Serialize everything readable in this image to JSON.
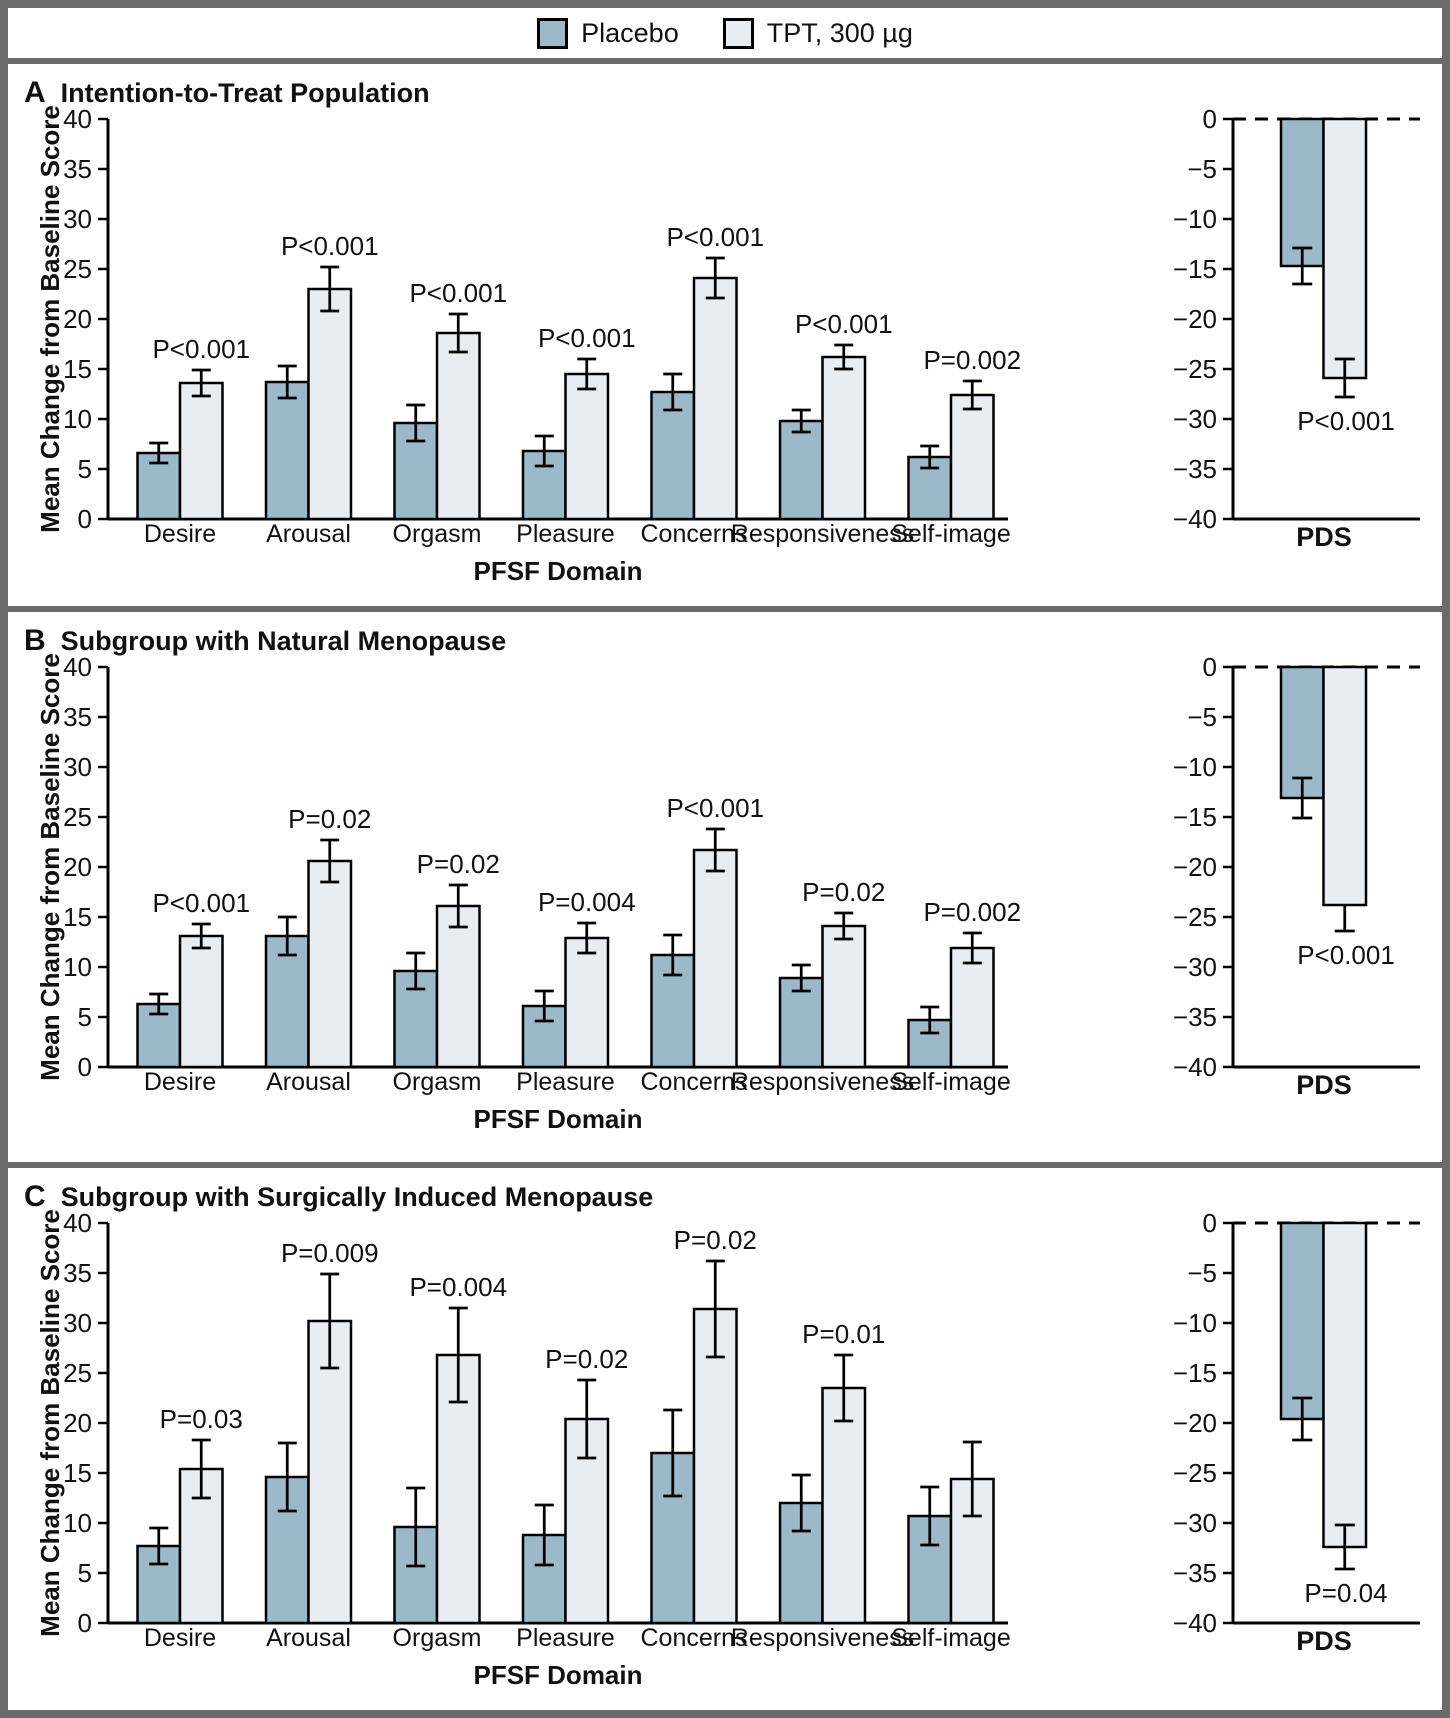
{
  "legend": {
    "items": [
      {
        "label": "Placebo",
        "color": "#9cb9ca"
      },
      {
        "label": "TPT, 300 µg",
        "color": "#e8edf4"
      }
    ]
  },
  "styles": {
    "frame_color": "#6b6b6b",
    "bar_stroke": "#000000",
    "placebo_fill": "#9cb9ca",
    "tpt_fill": "#e8edf4"
  },
  "chart_data": [
    {
      "type": "bar",
      "panel": "A",
      "title": "Intention-to-Treat Population",
      "ylabel": "Mean Change from Baseline Score",
      "xlabel": "PFSF Domain",
      "ylim": [
        0,
        40
      ],
      "ytick_step": 5,
      "grid": false,
      "legend_position": "top",
      "categories": [
        "Desire",
        "Arousal",
        "Orgasm",
        "Pleasure",
        "Concerns",
        "Responsiveness",
        "Self-image"
      ],
      "series": [
        {
          "name": "Placebo",
          "values": [
            6.6,
            13.7,
            9.6,
            6.8,
            12.7,
            9.8,
            6.2
          ],
          "errors": [
            1.0,
            1.6,
            1.8,
            1.5,
            1.8,
            1.1,
            1.1
          ]
        },
        {
          "name": "TPT, 300 µg",
          "values": [
            13.6,
            23.0,
            18.6,
            14.5,
            24.1,
            16.2,
            12.4
          ],
          "errors": [
            1.3,
            2.2,
            1.9,
            1.5,
            2.0,
            1.2,
            1.4
          ]
        }
      ],
      "p_values": [
        "P<0.001",
        "P<0.001",
        "P<0.001",
        "P<0.001",
        "P<0.001",
        "P<0.001",
        "P=0.002"
      ],
      "pds": {
        "label": "PDS",
        "ylim": [
          -40,
          0
        ],
        "ytick_step": 5,
        "series": [
          {
            "name": "Placebo",
            "value": -14.7,
            "error": 1.8,
            "error_style": "full"
          },
          {
            "name": "TPT, 300 µg",
            "value": -25.9,
            "error": 1.9,
            "error_style": "full"
          }
        ],
        "p_value": "P<0.001"
      }
    },
    {
      "type": "bar",
      "panel": "B",
      "title": "Subgroup with Natural Menopause",
      "ylabel": "Mean Change from Baseline Score",
      "xlabel": "PFSF Domain",
      "ylim": [
        0,
        40
      ],
      "ytick_step": 5,
      "grid": false,
      "categories": [
        "Desire",
        "Arousal",
        "Orgasm",
        "Pleasure",
        "Concerns",
        "Responsiveness",
        "Self-image"
      ],
      "series": [
        {
          "name": "Placebo",
          "values": [
            6.3,
            13.1,
            9.6,
            6.1,
            11.2,
            8.9,
            4.7
          ],
          "errors": [
            1.0,
            1.9,
            1.8,
            1.5,
            2.0,
            1.3,
            1.3
          ]
        },
        {
          "name": "TPT, 300 µg",
          "values": [
            13.1,
            20.6,
            16.1,
            12.9,
            21.7,
            14.1,
            11.9
          ],
          "errors": [
            1.2,
            2.1,
            2.1,
            1.5,
            2.1,
            1.3,
            1.5
          ]
        }
      ],
      "p_values": [
        "P<0.001",
        "P=0.02",
        "P=0.02",
        "P=0.004",
        "P<0.001",
        "P=0.02",
        "P=0.002"
      ],
      "pds": {
        "label": "PDS",
        "ylim": [
          -40,
          0
        ],
        "ytick_step": 5,
        "series": [
          {
            "name": "Placebo",
            "value": -13.1,
            "error": 2.0,
            "error_style": "full"
          },
          {
            "name": "TPT, 300 µg",
            "value": -23.8,
            "error": 2.6,
            "error_style": "below"
          }
        ],
        "p_value": "P<0.001"
      }
    },
    {
      "type": "bar",
      "panel": "C",
      "title": "Subgroup with Surgically Induced Menopause",
      "ylabel": "Mean Change from Baseline Score",
      "xlabel": "PFSF Domain",
      "ylim": [
        0,
        40
      ],
      "ytick_step": 5,
      "grid": false,
      "categories": [
        "Desire",
        "Arousal",
        "Orgasm",
        "Pleasure",
        "Concerns",
        "Responsiveness",
        "Self-image"
      ],
      "series": [
        {
          "name": "Placebo",
          "values": [
            7.7,
            14.6,
            9.6,
            8.8,
            17.0,
            12.0,
            10.7
          ],
          "errors": [
            1.8,
            3.4,
            3.9,
            3.0,
            4.3,
            2.8,
            2.9
          ]
        },
        {
          "name": "TPT, 300 µg",
          "values": [
            15.4,
            30.2,
            26.8,
            20.4,
            31.4,
            23.5,
            14.4
          ],
          "errors": [
            2.9,
            4.7,
            4.7,
            3.9,
            4.8,
            3.3,
            3.7
          ]
        }
      ],
      "p_values": [
        "P=0.03",
        "P=0.009",
        "P=0.004",
        "P=0.02",
        "P=0.02",
        "P=0.01",
        ""
      ],
      "pds": {
        "label": "PDS",
        "ylim": [
          -40,
          0
        ],
        "ytick_step": 5,
        "series": [
          {
            "name": "Placebo",
            "value": -19.6,
            "error": 2.1,
            "error_style": "full"
          },
          {
            "name": "TPT, 300 µg",
            "value": -32.4,
            "error": 2.2,
            "error_style": "full"
          }
        ],
        "p_value": "P=0.04"
      }
    }
  ]
}
